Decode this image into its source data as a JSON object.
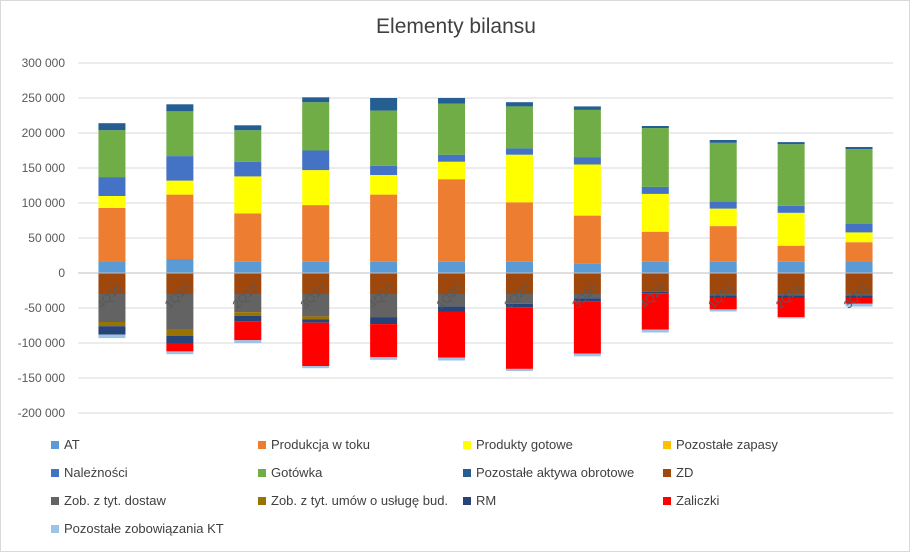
{
  "chart_data": {
    "type": "bar",
    "stacked": true,
    "title": "Elementy bilansu",
    "xlabel": "",
    "ylabel": "",
    "ylim": [
      -200000,
      300000
    ],
    "y_ticks": [
      -200000,
      -150000,
      -100000,
      -50000,
      0,
      50000,
      100000,
      150000,
      200000,
      250000,
      300000
    ],
    "y_tick_labels": [
      "-200 000",
      "-150 000",
      "-100 000",
      "-50 000",
      "0",
      "50 000",
      "100 000",
      "150 000",
      "200 000",
      "250 000",
      "300 000"
    ],
    "gridlines": true,
    "legend_position": "bottom",
    "categories": [
      "4Q18",
      "1Q19",
      "2Q19",
      "3Q19",
      "4Q19",
      "1Q20",
      "2Q20",
      "3Q20",
      "4Q20",
      "1Q21",
      "2Q21",
      "3Q21"
    ],
    "series": [
      {
        "name": "AT",
        "color": "#5b9bd5",
        "values": [
          17000,
          20000,
          16000,
          16000,
          16000,
          16000,
          16000,
          13000,
          16000,
          16000,
          16000,
          17000
        ]
      },
      {
        "name": "Produkcja w toku",
        "color": "#ed7d31",
        "values": [
          76000,
          92000,
          69000,
          81000,
          96000,
          118000,
          85000,
          69000,
          43000,
          51000,
          23000,
          27000
        ]
      },
      {
        "name": "Produkty gotowe",
        "color": "#ffff00",
        "values": [
          17000,
          20000,
          53000,
          50000,
          28000,
          25000,
          68000,
          73000,
          54000,
          25000,
          47000,
          14000
        ]
      },
      {
        "name": "Pozostałe zapasy",
        "color": "#ffc000",
        "values": [
          0,
          0,
          0,
          0,
          0,
          0,
          0,
          0,
          0,
          0,
          0,
          0
        ]
      },
      {
        "name": "Należności",
        "color": "#4472c4",
        "values": [
          27000,
          35000,
          21000,
          28000,
          13000,
          10000,
          9000,
          10000,
          10000,
          10000,
          10000,
          12000
        ]
      },
      {
        "name": "Gotówka",
        "color": "#70ad47",
        "values": [
          67000,
          64000,
          45000,
          69000,
          79000,
          73000,
          60000,
          68000,
          84000,
          84000,
          88000,
          107000
        ]
      },
      {
        "name": "Pozostałe aktywa obrotowe",
        "color": "#255e91",
        "values": [
          10000,
          10000,
          7000,
          7000,
          18000,
          8000,
          6000,
          5000,
          3000,
          4000,
          3000,
          3000
        ]
      },
      {
        "name": "ZD",
        "color": "#9e480e",
        "values": [
          -30000,
          -30000,
          -30000,
          -30000,
          -30000,
          -30000,
          -30000,
          -30000,
          -27000,
          -30000,
          -30000,
          -30000
        ]
      },
      {
        "name": "Zob. z tyt. dostaw",
        "color": "#636363",
        "values": [
          -40000,
          -50000,
          -26000,
          -32000,
          -33000,
          -18000,
          -14000,
          -6000,
          0,
          -2000,
          -2000,
          -2000
        ]
      },
      {
        "name": "Zob. z tyt. umów o usługę bud.",
        "color": "#997300",
        "values": [
          -6000,
          -10000,
          -5000,
          -4000,
          0,
          0,
          0,
          0,
          0,
          0,
          0,
          0
        ]
      },
      {
        "name": "RM",
        "color": "#264478",
        "values": [
          -12000,
          -10000,
          -8000,
          -5000,
          -10000,
          -7000,
          -5000,
          -5000,
          -2000,
          -3000,
          -3000,
          -3000
        ]
      },
      {
        "name": "Zaliczki",
        "color": "#ff0000",
        "values": [
          0,
          -12000,
          -27000,
          -62000,
          -47000,
          -66000,
          -88000,
          -74000,
          -52000,
          -17000,
          -28000,
          -9000
        ]
      },
      {
        "name": "Pozostałe zobowiązania KT",
        "color": "#9dc3e6",
        "values": [
          -5000,
          -4000,
          -4000,
          -3000,
          -4000,
          -4000,
          -3000,
          -4000,
          -4000,
          -3000,
          -2000,
          -4000
        ]
      }
    ]
  }
}
